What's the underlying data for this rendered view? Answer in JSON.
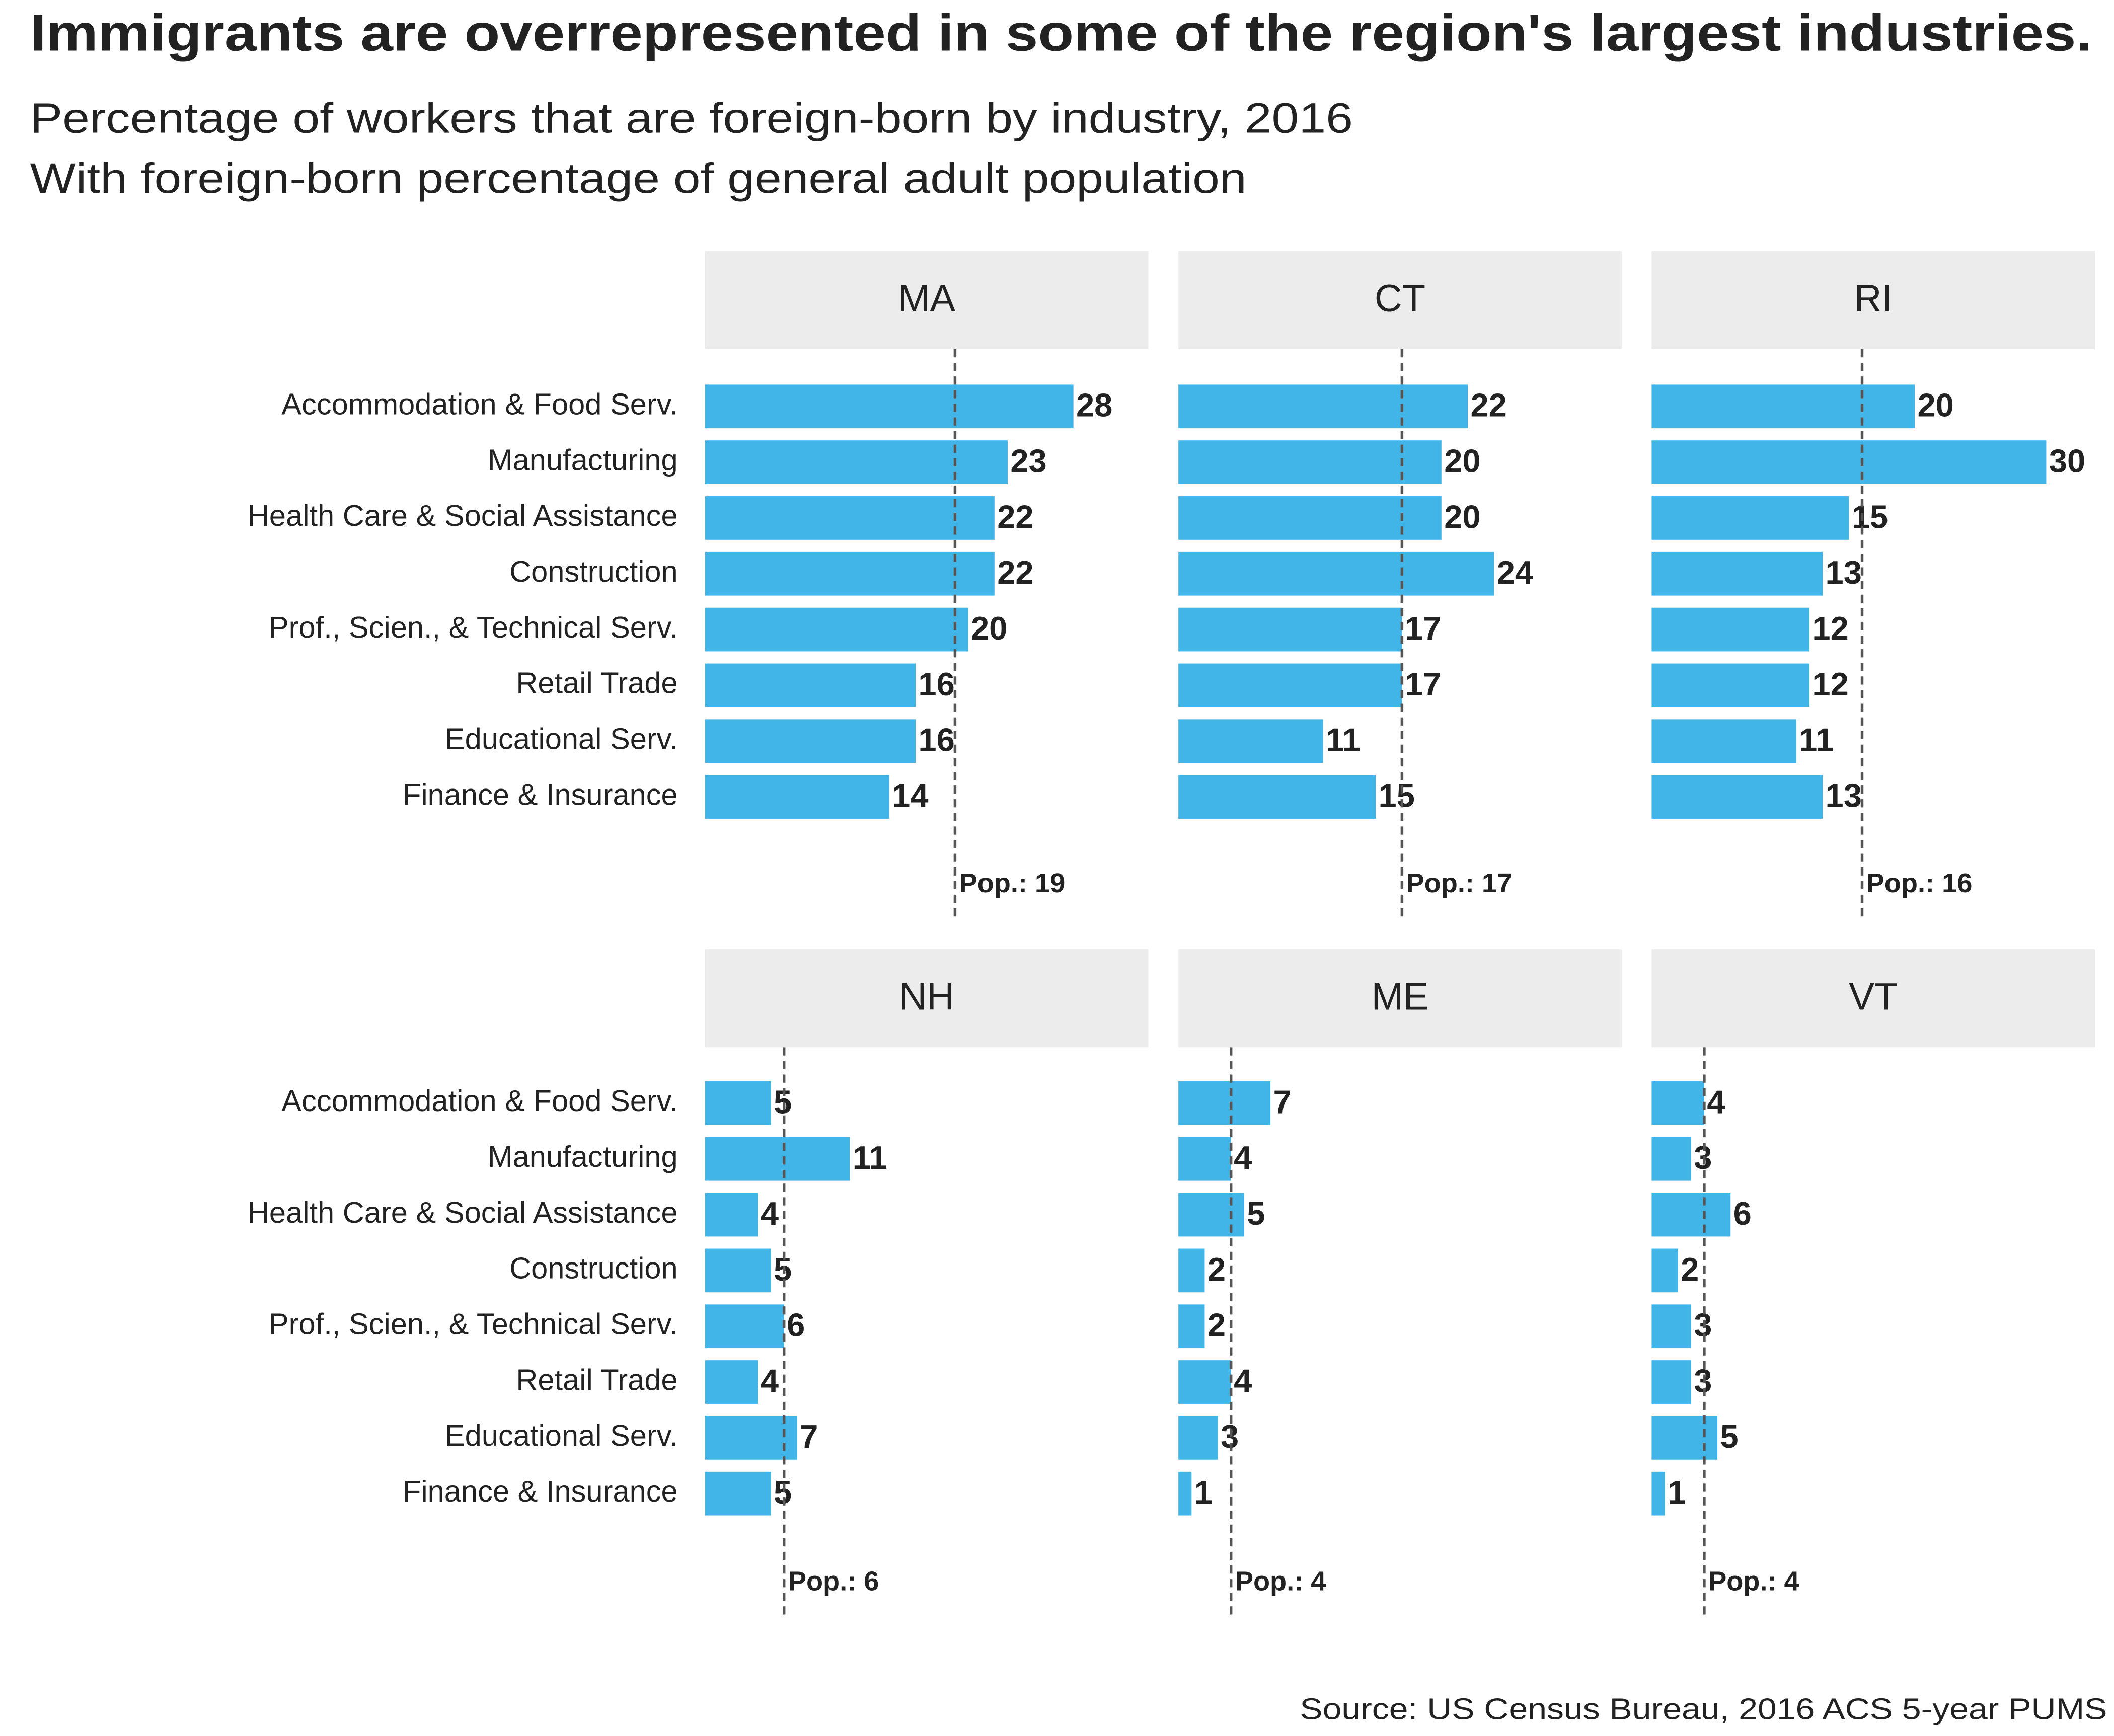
{
  "chart_data": {
    "type": "bar",
    "title": "Immigrants are overrepresented in some of the region's largest industries.",
    "subtitle": [
      "Percentage of workers that are foreign-born by industry, 2016",
      "With foreign-born percentage of general adult population"
    ],
    "source": "Source: US Census Bureau, 2016 ACS 5-year PUMS",
    "categories": [
      "Accommodation & Food Serv.",
      "Manufacturing",
      "Health Care & Social Assistance",
      "Construction",
      "Prof., Scien., & Technical Serv.",
      "Retail Trade",
      "Educational Serv.",
      "Finance & Insurance"
    ],
    "color": "#41b4e8",
    "xlim": [
      0,
      33.7
    ],
    "panels": [
      {
        "name": "MA",
        "values": [
          28,
          23,
          22,
          22,
          20,
          16,
          16,
          14
        ],
        "reference": {
          "value": 19,
          "label": "Pop.: 19"
        }
      },
      {
        "name": "CT",
        "values": [
          22,
          20,
          20,
          24,
          17,
          17,
          11,
          15
        ],
        "reference": {
          "value": 17,
          "label": "Pop.: 17"
        }
      },
      {
        "name": "RI",
        "values": [
          20,
          30,
          15,
          13,
          12,
          12,
          11,
          13
        ],
        "reference": {
          "value": 16,
          "label": "Pop.: 16"
        }
      },
      {
        "name": "NH",
        "values": [
          5,
          11,
          4,
          5,
          6,
          4,
          7,
          5
        ],
        "reference": {
          "value": 6,
          "label": "Pop.: 6"
        }
      },
      {
        "name": "ME",
        "values": [
          7,
          4,
          5,
          2,
          2,
          4,
          3,
          1
        ],
        "reference": {
          "value": 4,
          "label": "Pop.: 4"
        }
      },
      {
        "name": "VT",
        "values": [
          4,
          3,
          6,
          2,
          3,
          3,
          5,
          1
        ],
        "reference": {
          "value": 4,
          "label": "Pop.: 4"
        }
      }
    ]
  }
}
